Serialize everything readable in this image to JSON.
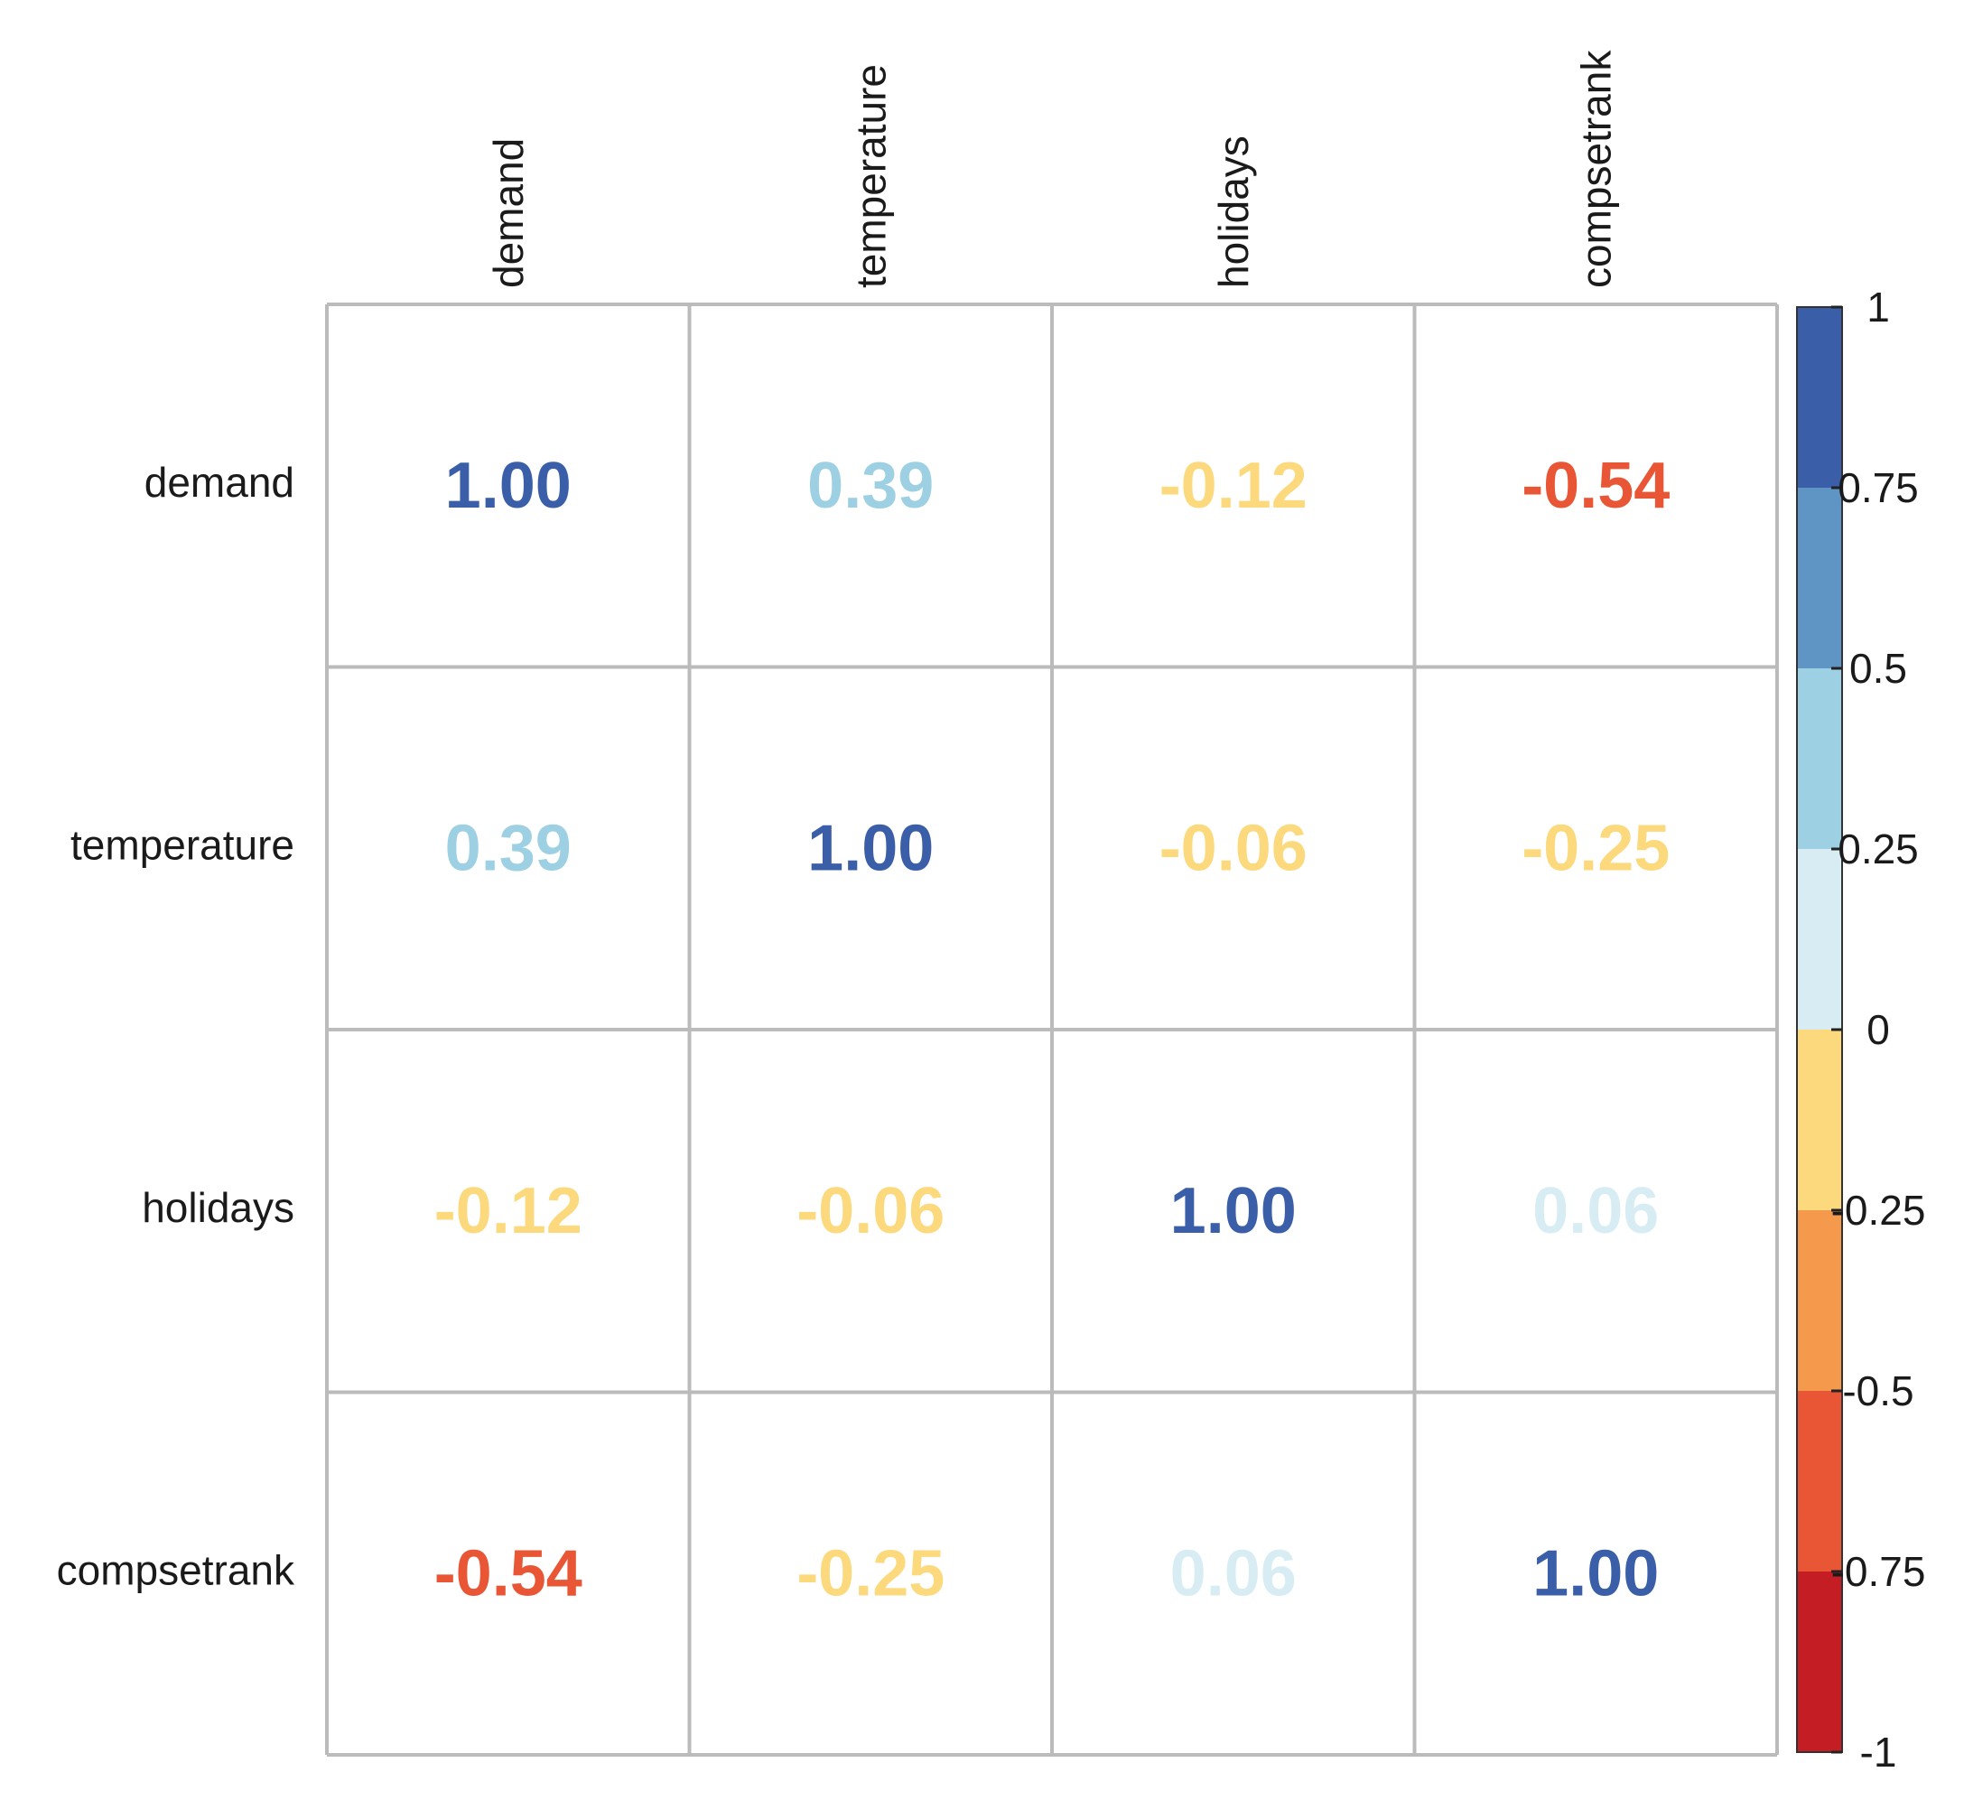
{
  "chart_data": {
    "type": "heatmap",
    "title": "",
    "variables": [
      "demand",
      "temperature",
      "holidays",
      "compsetrank"
    ],
    "matrix": [
      [
        1.0,
        0.39,
        -0.12,
        -0.54
      ],
      [
        0.39,
        1.0,
        -0.06,
        -0.25
      ],
      [
        -0.12,
        -0.06,
        1.0,
        0.06
      ],
      [
        -0.54,
        -0.25,
        0.06,
        1.0
      ]
    ],
    "labels": [
      [
        "1.00",
        "0.39",
        "-0.12",
        "-0.54"
      ],
      [
        "0.39",
        "1.00",
        "-0.06",
        "-0.25"
      ],
      [
        "-0.12",
        "-0.06",
        "1.00",
        "0.06"
      ],
      [
        "-0.54",
        "-0.25",
        "0.06",
        "1.00"
      ]
    ],
    "colorbar": {
      "range": [
        -1,
        1
      ],
      "ticks": [
        1,
        0.75,
        0.5,
        0.25,
        0,
        -0.25,
        -0.5,
        -0.75,
        -1
      ],
      "tick_labels": [
        "1",
        "0.75",
        "0.5",
        "0.25",
        "0",
        "-0.25",
        "-0.5",
        "-0.75",
        "-1"
      ],
      "bins": [
        {
          "from": 0.75,
          "to": 1,
          "color": "#3a5fa8"
        },
        {
          "from": 0.5,
          "to": 0.75,
          "color": "#5f95c4"
        },
        {
          "from": 0.25,
          "to": 0.5,
          "color": "#9dd0e2"
        },
        {
          "from": 0,
          "to": 0.25,
          "color": "#d8edf3"
        },
        {
          "from": -0.25,
          "to": 0,
          "color": "#fbd97c"
        },
        {
          "from": -0.5,
          "to": -0.25,
          "color": "#f59a4d"
        },
        {
          "from": -0.75,
          "to": -0.5,
          "color": "#e85635"
        },
        {
          "from": -1,
          "to": -0.75,
          "color": "#c41d24"
        }
      ]
    },
    "colors": {
      "grid_line": "#bbbbbb",
      "text": "#1a1a1a"
    }
  }
}
